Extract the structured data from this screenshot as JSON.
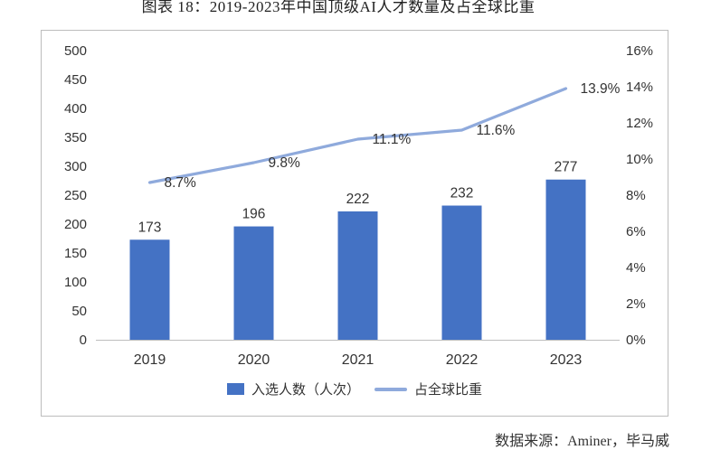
{
  "page": {
    "title": "图表 18：2019-2023年中国顶级AI人才数量及占全球比重",
    "source": "数据来源：Aminer，毕马威"
  },
  "chart_data": {
    "type": "bar",
    "subtype": "bar+line combo",
    "title": "图表 18：2019-2023年中国顶级AI人才数量及占全球比重",
    "categories": [
      "2019",
      "2020",
      "2021",
      "2022",
      "2023"
    ],
    "series": [
      {
        "name": "入选人数（人次）",
        "type": "bar",
        "axis": "left",
        "values": [
          173,
          196,
          222,
          232,
          277
        ],
        "color": "#4472C4"
      },
      {
        "name": "占全球比重",
        "type": "line",
        "axis": "right",
        "values": [
          8.7,
          9.8,
          11.1,
          11.6,
          13.9
        ],
        "unit": "%",
        "color": "#8FAADC"
      }
    ],
    "left_axis": {
      "min": 0,
      "max": 500,
      "step": 50
    },
    "right_axis": {
      "min": 0,
      "max": 16,
      "step": 2,
      "format": "percent"
    },
    "legend_position": "bottom",
    "grid": false,
    "data_labels": true,
    "colors": {
      "border": "#BDBDBD",
      "text": "#333333"
    }
  }
}
